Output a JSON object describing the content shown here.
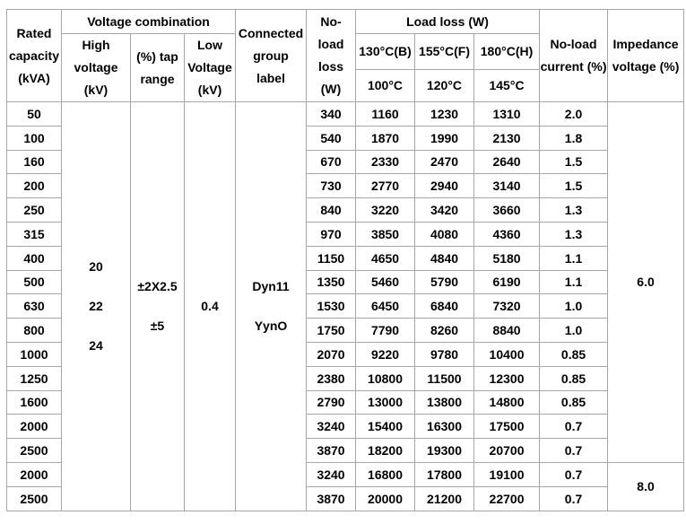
{
  "table": {
    "header": {
      "rated_capacity": [
        "Rated",
        "capacity",
        "(kVA)"
      ],
      "voltage_combination": "Voltage combination",
      "high_voltage": [
        "High",
        "voltage",
        "(kV)"
      ],
      "tap_range": [
        "(%) tap",
        "range"
      ],
      "low_voltage": [
        "Low",
        "Voltage",
        "(kV)"
      ],
      "connected_group": [
        "Connected",
        "group",
        "label"
      ],
      "no_load_loss": [
        "No-",
        "load",
        "loss",
        "(W)"
      ],
      "load_loss": "Load loss (W)",
      "temp_classes": [
        "130°C(B)",
        "155°C(F)",
        "180°C(H)"
      ],
      "temp_refs": [
        "100°C",
        "120°C",
        "145°C"
      ],
      "no_load_current": [
        "No-load",
        "current (%)"
      ],
      "impedance_voltage": [
        "Impedance",
        "voltage (%)"
      ]
    },
    "merged": {
      "high_voltage_values": [
        "20",
        "22",
        "24"
      ],
      "tap_range_values": [
        "±2X2.5",
        "±5"
      ],
      "low_voltage_value": "0.4",
      "connected_group_values": [
        "Dyn11",
        "YynO"
      ],
      "impedance_group1": "6.0",
      "impedance_group1_rowspan": 15,
      "impedance_group2": "8.0",
      "impedance_group2_rowspan": 2
    },
    "rows": [
      {
        "kva": "50",
        "nll": "340",
        "ll130": "1160",
        "ll155": "1230",
        "ll180": "1310",
        "nlc": "2.0"
      },
      {
        "kva": "100",
        "nll": "540",
        "ll130": "1870",
        "ll155": "1990",
        "ll180": "2130",
        "nlc": "1.8"
      },
      {
        "kva": "160",
        "nll": "670",
        "ll130": "2330",
        "ll155": "2470",
        "ll180": "2640",
        "nlc": "1.5"
      },
      {
        "kva": "200",
        "nll": "730",
        "ll130": "2770",
        "ll155": "2940",
        "ll180": "3140",
        "nlc": "1.5"
      },
      {
        "kva": "250",
        "nll": "840",
        "ll130": "3220",
        "ll155": "3420",
        "ll180": "3660",
        "nlc": "1.3"
      },
      {
        "kva": "315",
        "nll": "970",
        "ll130": "3850",
        "ll155": "4080",
        "ll180": "4360",
        "nlc": "1.3"
      },
      {
        "kva": "400",
        "nll": "1150",
        "ll130": "4650",
        "ll155": "4840",
        "ll180": "5180",
        "nlc": "1.1"
      },
      {
        "kva": "500",
        "nll": "1350",
        "ll130": "5460",
        "ll155": "5790",
        "ll180": "6190",
        "nlc": "1.1"
      },
      {
        "kva": "630",
        "nll": "1530",
        "ll130": "6450",
        "ll155": "6840",
        "ll180": "7320",
        "nlc": "1.0"
      },
      {
        "kva": "800",
        "nll": "1750",
        "ll130": "7790",
        "ll155": "8260",
        "ll180": "8840",
        "nlc": "1.0"
      },
      {
        "kva": "1000",
        "nll": "2070",
        "ll130": "9220",
        "ll155": "9780",
        "ll180": "10400",
        "nlc": "0.85"
      },
      {
        "kva": "1250",
        "nll": "2380",
        "ll130": "10800",
        "ll155": "11500",
        "ll180": "12300",
        "nlc": "0.85"
      },
      {
        "kva": "1600",
        "nll": "2790",
        "ll130": "13000",
        "ll155": "13800",
        "ll180": "14800",
        "nlc": "0.85"
      },
      {
        "kva": "2000",
        "nll": "3240",
        "ll130": "15400",
        "ll155": "16300",
        "ll180": "17500",
        "nlc": "0.7"
      },
      {
        "kva": "2500",
        "nll": "3870",
        "ll130": "18200",
        "ll155": "19300",
        "ll180": "20700",
        "nlc": "0.7"
      },
      {
        "kva": "2000",
        "nll": "3240",
        "ll130": "16800",
        "ll155": "17800",
        "ll180": "19100",
        "nlc": "0.7"
      },
      {
        "kva": "2500",
        "nll": "3870",
        "ll130": "20000",
        "ll155": "21200",
        "ll180": "22700",
        "nlc": "0.7"
      }
    ]
  }
}
